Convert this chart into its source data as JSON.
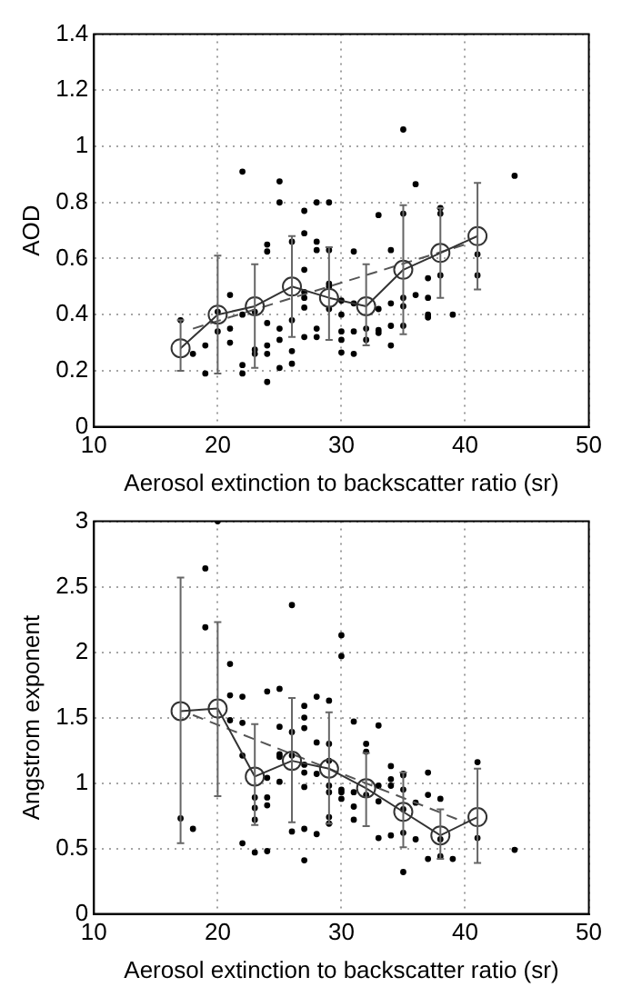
{
  "chart_data": [
    {
      "type": "scatter",
      "xlabel": "Aerosol extinction to backscatter ratio (sr)",
      "ylabel": "AOD",
      "xlim": [
        10,
        50
      ],
      "xticks": [
        10,
        20,
        30,
        40,
        50
      ],
      "ylim": [
        0,
        1.4
      ],
      "yticks": [
        0,
        0.2,
        0.4,
        0.6,
        0.8,
        1,
        1.2,
        1.4
      ],
      "grid": true,
      "series": [
        {
          "type": "scatter",
          "marker": "circle",
          "color": "#000000",
          "x": [
            17,
            18,
            19,
            19,
            20,
            20,
            21,
            21,
            21,
            22,
            22,
            22,
            22,
            23,
            23,
            23,
            24,
            24,
            24,
            24,
            24,
            24,
            25,
            25,
            25,
            25,
            25,
            26,
            26,
            26,
            26,
            27,
            27,
            27,
            27,
            27,
            27,
            27,
            28,
            28,
            28,
            28,
            28,
            29,
            29,
            29,
            29,
            29,
            30,
            30,
            30,
            30,
            30,
            31,
            31,
            31,
            31,
            32,
            32,
            33,
            33,
            33,
            33,
            34,
            34,
            34,
            34,
            35,
            35,
            35,
            35,
            35,
            36,
            36,
            37,
            37,
            37,
            37,
            38,
            38,
            38,
            39,
            41,
            41,
            44
          ],
          "values": [
            0.38,
            0.26,
            0.29,
            0.19,
            0.34,
            0.41,
            0.47,
            0.35,
            0.3,
            0.91,
            0.4,
            0.22,
            0.19,
            0.41,
            0.275,
            0.26,
            0.65,
            0.625,
            0.37,
            0.29,
            0.26,
            0.16,
            0.875,
            0.8,
            0.35,
            0.31,
            0.21,
            0.66,
            0.38,
            0.27,
            0.225,
            0.77,
            0.69,
            0.56,
            0.48,
            0.46,
            0.425,
            0.32,
            0.8,
            0.66,
            0.63,
            0.35,
            0.32,
            0.8,
            0.63,
            0.51,
            0.5,
            0.42,
            0.45,
            0.4,
            0.34,
            0.31,
            0.265,
            0.625,
            0.44,
            0.34,
            0.26,
            0.35,
            0.31,
            0.755,
            0.42,
            0.345,
            0.335,
            0.63,
            0.44,
            0.36,
            0.29,
            1.06,
            0.76,
            0.46,
            0.43,
            0.36,
            0.865,
            0.47,
            0.53,
            0.46,
            0.4,
            0.39,
            0.78,
            0.76,
            0.54,
            0.4,
            0.615,
            0.54,
            0.895
          ]
        },
        {
          "type": "line",
          "marker": "circle",
          "color": "#333333",
          "x": [
            17,
            20,
            23,
            26,
            29,
            32,
            35,
            38,
            41
          ],
          "values": [
            0.28,
            0.4,
            0.43,
            0.5,
            0.46,
            0.43,
            0.56,
            0.62,
            0.68
          ],
          "errors": [
            [
              0.2,
              0.38
            ],
            [
              0.19,
              0.61
            ],
            [
              0.21,
              0.58
            ],
            [
              0.32,
              0.68
            ],
            [
              0.31,
              0.64
            ],
            [
              0.29,
              0.58
            ],
            [
              0.33,
              0.79
            ],
            [
              0.46,
              0.78
            ],
            [
              0.49,
              0.87
            ]
          ]
        },
        {
          "type": "line",
          "marker": "none",
          "line_style": "dashed",
          "color": "#555555",
          "x": [
            18,
            40
          ],
          "values": [
            0.35,
            0.65
          ]
        }
      ]
    },
    {
      "type": "scatter",
      "xlabel": "Aerosol extinction to backscatter ratio (sr)",
      "ylabel": "Angstrom exponent",
      "xlim": [
        10,
        50
      ],
      "xticks": [
        10,
        20,
        30,
        40,
        50
      ],
      "ylim": [
        0,
        3
      ],
      "yticks": [
        0,
        0.5,
        1,
        1.5,
        2,
        2.5,
        3
      ],
      "grid": true,
      "series": [
        {
          "type": "scatter",
          "marker": "circle",
          "color": "#000000",
          "x": [
            17,
            18,
            19,
            19,
            20,
            21,
            21,
            21,
            22,
            22,
            22,
            22,
            23,
            23,
            23,
            23,
            24,
            24,
            24,
            24,
            24,
            25,
            25,
            25,
            25,
            25,
            26,
            26,
            26,
            26,
            27,
            27,
            27,
            27,
            27,
            27,
            27,
            27,
            28,
            28,
            28,
            28,
            29,
            29,
            29,
            29,
            29,
            29,
            29,
            30,
            30,
            30,
            30,
            30,
            31,
            31,
            31,
            31,
            32,
            32,
            32,
            33,
            33,
            33,
            33,
            34,
            34,
            34,
            34,
            35,
            35,
            35,
            35,
            35,
            35,
            36,
            36,
            37,
            37,
            37,
            38,
            38,
            38,
            39,
            41,
            41,
            44
          ],
          "values": [
            0.73,
            0.65,
            2.64,
            2.19,
            3.0,
            1.91,
            1.67,
            1.48,
            1.66,
            1.46,
            1.21,
            0.54,
            0.89,
            0.81,
            0.72,
            0.47,
            1.7,
            1.04,
            0.89,
            0.83,
            0.48,
            1.72,
            1.43,
            1.22,
            1.2,
            1.01,
            2.36,
            1.39,
            1.21,
            0.63,
            1.59,
            1.5,
            1.42,
            1.14,
            1.08,
            0.97,
            0.65,
            0.41,
            1.66,
            1.31,
            1.07,
            0.61,
            1.63,
            1.3,
            1.17,
            0.98,
            0.93,
            0.74,
            0.69,
            2.13,
            1.97,
            0.95,
            0.93,
            0.88,
            1.47,
            0.93,
            0.82,
            0.72,
            1.3,
            1.24,
            0.91,
            1.44,
            0.98,
            0.86,
            0.58,
            1.13,
            1.03,
            0.98,
            0.6,
            1.07,
            1.06,
            0.95,
            0.8,
            0.62,
            0.32,
            0.85,
            0.57,
            1.08,
            0.91,
            0.42,
            0.88,
            0.57,
            0.44,
            0.42,
            1.16,
            0.58,
            0.49
          ]
        },
        {
          "type": "line",
          "marker": "circle",
          "color": "#333333",
          "x": [
            17,
            20,
            23,
            26,
            29,
            32,
            35,
            38,
            41
          ],
          "values": [
            1.55,
            1.57,
            1.05,
            1.17,
            1.11,
            0.96,
            0.78,
            0.6,
            0.74
          ],
          "errors": [
            [
              0.54,
              2.57
            ],
            [
              0.9,
              2.23
            ],
            [
              0.68,
              1.45
            ],
            [
              0.7,
              1.65
            ],
            [
              0.69,
              1.54
            ],
            [
              0.67,
              1.23
            ],
            [
              0.51,
              1.08
            ],
            [
              0.42,
              0.8
            ],
            [
              0.39,
              1.11
            ]
          ]
        },
        {
          "type": "line",
          "marker": "none",
          "line_style": "dashed",
          "color": "#555555",
          "x": [
            18,
            40
          ],
          "values": [
            1.52,
            0.7
          ]
        }
      ]
    }
  ]
}
